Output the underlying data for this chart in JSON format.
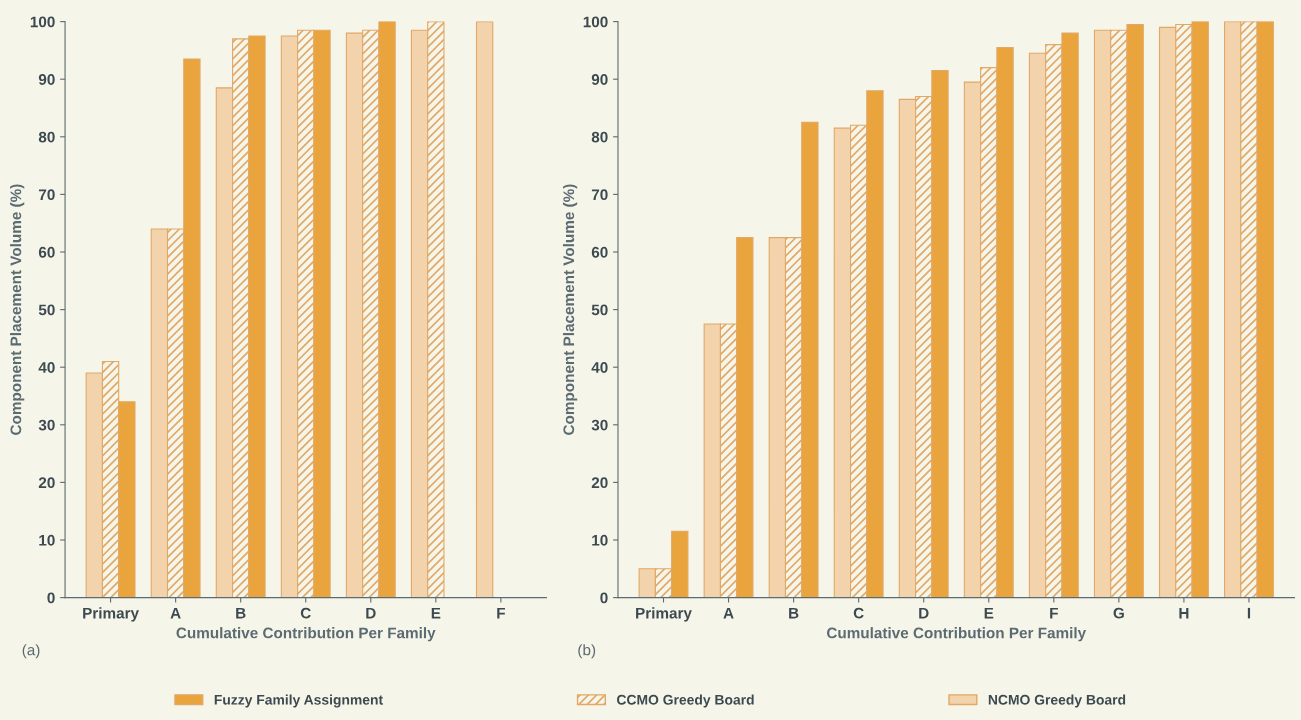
{
  "chart_data": [
    {
      "type": "bar",
      "xlabel": "Cumulative Contribution Per Family",
      "ylabel": "Component Placement Volume (%)",
      "annotations": [
        "(a)"
      ],
      "categories": [
        "Primary",
        "A",
        "B",
        "C",
        "D",
        "E",
        "F"
      ],
      "series": [
        {
          "name": "NCMO Greedy Board",
          "color": "#f2d3ac",
          "values": [
            39,
            64,
            88.5,
            97.5,
            98,
            98.5,
            100
          ]
        },
        {
          "name": "CCMO Greedy Board",
          "color": "#e2a865",
          "values": [
            41,
            64,
            97,
            98.5,
            98.5,
            100,
            null
          ]
        },
        {
          "name": "Fuzzy Family Assignment",
          "color": "#e9a43e",
          "values": [
            34,
            93.5,
            97.5,
            98.5,
            100,
            null,
            null
          ]
        }
      ],
      "ylim": [
        0,
        100
      ],
      "yticks": [
        0,
        10,
        20,
        30,
        40,
        50,
        60,
        70,
        80,
        90,
        100
      ],
      "grid": false,
      "legend": "bottom"
    },
    {
      "type": "bar",
      "xlabel": "Cumulative Contribution Per Family",
      "ylabel": "Component Placement Volume (%)",
      "annotations": [
        "(b)"
      ],
      "categories": [
        "Primary",
        "A",
        "B",
        "C",
        "D",
        "E",
        "F",
        "G",
        "H",
        "I"
      ],
      "series": [
        {
          "color": "#f2d3ac",
          "values": [
            5,
            47.5,
            62.5,
            81.5,
            86.5,
            89.5,
            94.5,
            98.5,
            99,
            100
          ]
        },
        {
          "color": "#e2a865",
          "values": [
            5,
            47.5,
            62.5,
            82,
            87,
            92,
            96,
            98.5,
            99.5,
            100
          ]
        },
        {
          "color": "#e9a43e",
          "values": [
            11.5,
            62.5,
            82.5,
            88,
            91.5,
            95.5,
            98,
            99.5,
            100,
            100
          ]
        }
      ],
      "ylim": [
        0,
        100
      ],
      "yticks": [
        0,
        10,
        20,
        30,
        40,
        50,
        60,
        70,
        80,
        90,
        100
      ],
      "grid": false
    }
  ]
}
